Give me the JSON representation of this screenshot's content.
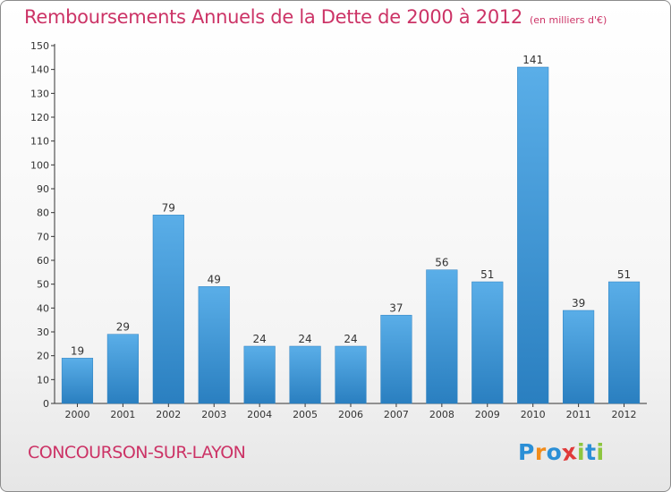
{
  "header": {
    "title": "Remboursements Annuels de la Dette de 2000 à 2012",
    "subtitle": "(en milliers d'€)"
  },
  "footer": {
    "commune": "CONCOURSON-SUR-LAYON",
    "logo_text": "Proxiti",
    "logo_colors": [
      "#2b8fd6",
      "#f28c1a",
      "#2b8fd6",
      "#e03a3a",
      "#8dc63f",
      "#2b8fd6",
      "#8dc63f"
    ]
  },
  "colors": {
    "title": "#cc3366",
    "bar_light": "#5aaee8",
    "bar_dark": "#2a7fc0",
    "axis": "#333333",
    "grid": "#cfcfcf"
  },
  "chart_data": {
    "type": "bar",
    "title": "Remboursements Annuels de la Dette de 2000 à 2012",
    "subtitle": "(en milliers d'€)",
    "categories": [
      "2000",
      "2001",
      "2002",
      "2003",
      "2004",
      "2005",
      "2006",
      "2007",
      "2008",
      "2009",
      "2010",
      "2011",
      "2012"
    ],
    "values": [
      19,
      29,
      79,
      49,
      24,
      24,
      24,
      37,
      56,
      51,
      141,
      39,
      51
    ],
    "data_labels": [
      "19",
      "29",
      "79",
      "49",
      "24",
      "24",
      "24",
      "37",
      "56",
      "51",
      "141",
      "39",
      "51"
    ],
    "xlabel": "",
    "ylabel": "",
    "ylim": [
      0,
      150
    ],
    "yticks": [
      0,
      10,
      20,
      30,
      40,
      50,
      60,
      70,
      80,
      90,
      100,
      110,
      120,
      130,
      140,
      150
    ],
    "grid": false,
    "legend": "none"
  }
}
